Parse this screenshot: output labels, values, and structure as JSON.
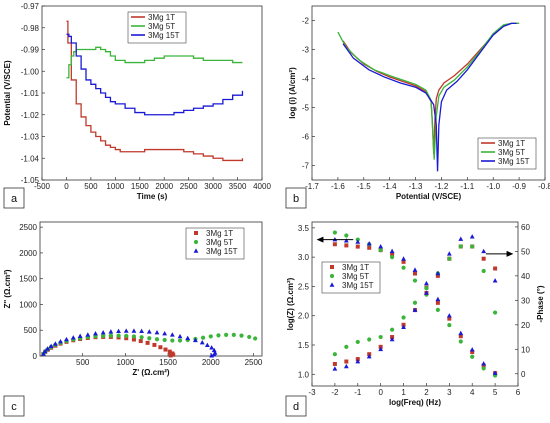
{
  "colors": {
    "Mg1T": "#c0392b",
    "Mg5T": "#3ab53a",
    "Mg15T": "#1a1ad6"
  },
  "chart_data": [
    {
      "panel_label": "a",
      "type": "line",
      "xlabel": "Time (s)",
      "ylabel": "Potential (V/SCE)",
      "xlim": [
        -500,
        4000
      ],
      "ylim": [
        -1.05,
        -0.97
      ],
      "xticks": [
        -500,
        0,
        500,
        1000,
        1500,
        2000,
        2500,
        3000,
        3500,
        4000
      ],
      "yticks": [
        -0.97,
        -0.98,
        -0.99,
        -1.0,
        -1.01,
        -1.02,
        -1.03,
        -1.04,
        -1.05
      ],
      "xtick_labels": [
        "-500",
        "0",
        "500",
        "1000",
        "1500",
        "2000",
        "2500",
        "3000",
        "3500",
        "4000"
      ],
      "ytick_labels": [
        "-0.97",
        "-0.98",
        "-0.99",
        "-1.00",
        "-1.01",
        "-1.02",
        "-1.03",
        "-1.04",
        "-1.05"
      ],
      "legend_position": "top-center",
      "series": [
        {
          "name": "3Mg 1T",
          "x": [
            0,
            30,
            100,
            200,
            300,
            400,
            500,
            600,
            700,
            800,
            900,
            1000,
            1100,
            1200,
            1400,
            1600,
            1800,
            2000,
            2200,
            2400,
            2600,
            2800,
            3000,
            3200,
            3400,
            3600
          ],
          "y": [
            -0.977,
            -0.987,
            -1.004,
            -1.015,
            -1.021,
            -1.025,
            -1.028,
            -1.03,
            -1.032,
            -1.034,
            -1.035,
            -1.036,
            -1.037,
            -1.037,
            -1.037,
            -1.036,
            -1.036,
            -1.036,
            -1.036,
            -1.037,
            -1.038,
            -1.039,
            -1.04,
            -1.041,
            -1.041,
            -1.04
          ]
        },
        {
          "name": "3Mg 5T",
          "x": [
            0,
            50,
            100,
            150,
            200,
            300,
            400,
            500,
            600,
            700,
            800,
            900,
            1000,
            1200,
            1400,
            1600,
            1800,
            2000,
            2200,
            2400,
            2600,
            2800,
            3000,
            3200,
            3400,
            3600
          ],
          "y": [
            -1.003,
            -0.997,
            -0.993,
            -0.991,
            -0.99,
            -0.99,
            -0.99,
            -0.99,
            -0.989,
            -0.99,
            -0.991,
            -0.993,
            -0.995,
            -0.996,
            -0.996,
            -0.995,
            -0.994,
            -0.993,
            -0.993,
            -0.993,
            -0.994,
            -0.995,
            -0.995,
            -0.995,
            -0.996,
            -0.996
          ]
        },
        {
          "name": "3Mg 15T",
          "x": [
            0,
            50,
            100,
            200,
            300,
            400,
            500,
            600,
            700,
            800,
            900,
            1000,
            1200,
            1400,
            1600,
            1800,
            2000,
            2200,
            2400,
            2600,
            2800,
            3000,
            3200,
            3400,
            3600
          ],
          "y": [
            -0.983,
            -0.984,
            -0.987,
            -0.993,
            -0.999,
            -1.004,
            -1.006,
            -1.008,
            -1.01,
            -1.012,
            -1.014,
            -1.015,
            -1.017,
            -1.019,
            -1.02,
            -1.02,
            -1.02,
            -1.019,
            -1.018,
            -1.017,
            -1.016,
            -1.015,
            -1.013,
            -1.011,
            -1.009
          ]
        }
      ]
    },
    {
      "panel_label": "b",
      "type": "line",
      "xlabel": "Potential (V/SCE)",
      "ylabel": "log (i) (A/cm²)",
      "xlim": [
        -1.7,
        -0.8
      ],
      "ylim": [
        -7.5,
        -1.5
      ],
      "xticks": [
        -1.7,
        -1.6,
        -1.5,
        -1.4,
        -1.3,
        -1.2,
        -1.1,
        -1.0,
        -0.9,
        -0.8
      ],
      "yticks": [
        -2,
        -3,
        -4,
        -5,
        -6,
        -7
      ],
      "xtick_labels": [
        "-1.7",
        "-1.6",
        "-1.5",
        "-1.4",
        "-1.3",
        "-1.2",
        "-1.1",
        "-1.0",
        "-0.9",
        "-0.8"
      ],
      "ytick_labels": [
        "-2",
        "-3",
        "-4",
        "-5",
        "-6",
        "-7"
      ],
      "legend_position": "bottom-right",
      "series": [
        {
          "name": "3Mg 1T",
          "x": [
            -1.58,
            -1.55,
            -1.5,
            -1.45,
            -1.4,
            -1.35,
            -1.3,
            -1.26,
            -1.24,
            -1.235,
            -1.23,
            -1.225,
            -1.22,
            -1.21,
            -1.19,
            -1.15,
            -1.1,
            -1.05,
            -1.0,
            -0.96,
            -0.93,
            -0.9
          ],
          "y": [
            -2.7,
            -3.1,
            -3.5,
            -3.75,
            -3.95,
            -4.1,
            -4.25,
            -4.45,
            -4.8,
            -5.5,
            -6.6,
            -5.4,
            -4.7,
            -4.4,
            -4.15,
            -3.9,
            -3.5,
            -3.0,
            -2.5,
            -2.2,
            -2.1,
            -2.1
          ]
        },
        {
          "name": "3Mg 5T",
          "x": [
            -1.6,
            -1.57,
            -1.52,
            -1.46,
            -1.4,
            -1.35,
            -1.3,
            -1.26,
            -1.24,
            -1.235,
            -1.228,
            -1.22,
            -1.21,
            -1.19,
            -1.15,
            -1.1,
            -1.05,
            -1.0,
            -0.96,
            -0.93,
            -0.9
          ],
          "y": [
            -2.4,
            -2.9,
            -3.35,
            -3.7,
            -3.9,
            -4.05,
            -4.2,
            -4.4,
            -4.75,
            -5.6,
            -6.8,
            -5.3,
            -4.6,
            -4.3,
            -4.05,
            -3.6,
            -3.05,
            -2.45,
            -2.15,
            -2.1,
            -2.1
          ]
        },
        {
          "name": "3Mg 15T",
          "x": [
            -1.58,
            -1.54,
            -1.48,
            -1.42,
            -1.36,
            -1.3,
            -1.26,
            -1.23,
            -1.22,
            -1.215,
            -1.21,
            -1.2,
            -1.18,
            -1.14,
            -1.1,
            -1.05,
            -1.0,
            -0.96,
            -0.93,
            -0.91
          ],
          "y": [
            -2.8,
            -3.3,
            -3.7,
            -3.95,
            -4.15,
            -4.3,
            -4.5,
            -4.9,
            -5.6,
            -7.2,
            -5.6,
            -4.8,
            -4.4,
            -4.1,
            -3.7,
            -3.1,
            -2.5,
            -2.2,
            -2.1,
            -2.1
          ]
        }
      ]
    },
    {
      "panel_label": "c",
      "type": "scatter",
      "xlabel": "Z' (Ω.cm²)",
      "ylabel": "Z'' (Ω.cm²)",
      "xlim": [
        0,
        2600
      ],
      "ylim": [
        0,
        2600
      ],
      "xticks": [
        500,
        1000,
        1500,
        2000,
        2500
      ],
      "yticks": [
        0,
        500,
        1000,
        1500,
        2000,
        2500
      ],
      "xtick_labels": [
        "500",
        "1000",
        "1500",
        "2000",
        "2500"
      ],
      "ytick_labels": [
        "0",
        "500",
        "1000",
        "1500",
        "2000",
        "2500"
      ],
      "legend_position": "top-right",
      "series": [
        {
          "name": "3Mg 1T",
          "marker": "square",
          "x": [
            40,
            60,
            90,
            130,
            180,
            240,
            310,
            390,
            470,
            560,
            650,
            740,
            830,
            920,
            1010,
            1100,
            1180,
            1260,
            1340,
            1410,
            1470,
            1520,
            1550,
            1560,
            1530
          ],
          "y": [
            40,
            80,
            120,
            160,
            200,
            240,
            275,
            305,
            330,
            350,
            365,
            370,
            370,
            360,
            345,
            320,
            290,
            255,
            215,
            170,
            125,
            85,
            50,
            25,
            10
          ]
        },
        {
          "name": "3Mg 5T",
          "marker": "circle",
          "x": [
            40,
            60,
            90,
            130,
            180,
            240,
            310,
            390,
            470,
            560,
            650,
            740,
            830,
            920,
            1010,
            1100,
            1190,
            1280,
            1370,
            1460,
            1550,
            1640,
            1730,
            1820,
            1910,
            2000,
            2090,
            2180,
            2270,
            2360,
            2450,
            2520
          ],
          "y": [
            40,
            85,
            130,
            175,
            215,
            255,
            290,
            320,
            345,
            365,
            380,
            390,
            395,
            395,
            390,
            380,
            365,
            345,
            325,
            310,
            300,
            300,
            310,
            330,
            355,
            380,
            400,
            410,
            410,
            395,
            370,
            340
          ]
        },
        {
          "name": "3Mg 15T",
          "marker": "triangle",
          "x": [
            40,
            60,
            90,
            130,
            180,
            240,
            310,
            390,
            470,
            560,
            650,
            740,
            830,
            920,
            1010,
            1100,
            1190,
            1280,
            1370,
            1460,
            1550,
            1640,
            1730,
            1820,
            1900,
            1960,
            2010,
            2040,
            2050,
            2040,
            2010
          ],
          "y": [
            40,
            90,
            140,
            190,
            235,
            280,
            320,
            355,
            385,
            410,
            435,
            455,
            470,
            480,
            485,
            485,
            480,
            470,
            455,
            435,
            410,
            380,
            345,
            305,
            260,
            210,
            160,
            110,
            60,
            25,
            5
          ]
        }
      ]
    },
    {
      "panel_label": "d",
      "type": "scatter",
      "xlabel": "log(Freq) (Hz)",
      "ylabel": "log(Z) (Ω.cm²)",
      "ylabel_right": "-Phase (°)",
      "xlim": [
        -3,
        6
      ],
      "ylim": [
        0.8,
        3.6
      ],
      "y2lim": [
        -5,
        62
      ],
      "xticks": [
        -3,
        -2,
        -1,
        0,
        1,
        2,
        3,
        4,
        5,
        6
      ],
      "yticks": [
        1.0,
        1.5,
        2.0,
        2.5,
        3.0,
        3.5
      ],
      "y2ticks": [
        0,
        10,
        20,
        30,
        40,
        50,
        60
      ],
      "xtick_labels": [
        "-3",
        "-2",
        "-1",
        "0",
        "1",
        "2",
        "3",
        "4",
        "5",
        "6"
      ],
      "ytick_labels": [
        "1.0",
        "1.5",
        "2.0",
        "2.5",
        "3.0",
        "3.5"
      ],
      "y2tick_labels": [
        "0",
        "10",
        "20",
        "30",
        "40",
        "50",
        "60"
      ],
      "legend_position": "center-left",
      "series_logZ": [
        {
          "name": "3Mg 1T",
          "marker": "square",
          "x": [
            -2,
            -1.5,
            -1,
            -0.5,
            0,
            0.5,
            1,
            1.5,
            2,
            2.5,
            3,
            3.5,
            4,
            4.5,
            5
          ],
          "y": [
            3.22,
            3.2,
            3.18,
            3.16,
            3.12,
            3.05,
            2.92,
            2.72,
            2.48,
            2.22,
            1.95,
            1.65,
            1.38,
            1.15,
            1.02
          ]
        },
        {
          "name": "3Mg 5T",
          "marker": "circle",
          "x": [
            -2,
            -1.5,
            -1,
            -0.5,
            0,
            0.5,
            1,
            1.5,
            2,
            2.5,
            3,
            3.5,
            4,
            4.5,
            5
          ],
          "y": [
            3.42,
            3.37,
            3.3,
            3.22,
            3.12,
            3.0,
            2.82,
            2.6,
            2.36,
            2.1,
            1.84,
            1.56,
            1.3,
            1.1,
            0.98
          ]
        },
        {
          "name": "3Mg 15T",
          "marker": "triangle",
          "x": [
            -2,
            -1.5,
            -1,
            -0.5,
            0,
            0.5,
            1,
            1.5,
            2,
            2.5,
            3,
            3.5,
            4,
            4.5,
            5
          ],
          "y": [
            3.3,
            3.28,
            3.26,
            3.23,
            3.18,
            3.1,
            2.97,
            2.78,
            2.55,
            2.28,
            2.0,
            1.7,
            1.42,
            1.18,
            1.02
          ]
        }
      ],
      "series_phase": [
        {
          "name": "3Mg 1T",
          "marker": "square",
          "x": [
            -2,
            -1.5,
            -1,
            -0.5,
            0,
            0.5,
            1,
            1.5,
            2,
            2.5,
            3,
            3.5,
            4,
            4.5,
            5
          ],
          "y": [
            4,
            5,
            6,
            8,
            11,
            15,
            20,
            26,
            33,
            40,
            47,
            52,
            52,
            47,
            43
          ]
        },
        {
          "name": "3Mg 5T",
          "marker": "circle",
          "x": [
            -2,
            -1.5,
            -1,
            -0.5,
            0,
            0.5,
            1,
            1.5,
            2,
            2.5,
            3,
            3.5,
            4,
            4.5,
            5
          ],
          "y": [
            8,
            11,
            13,
            14,
            15,
            18,
            23,
            29,
            35,
            41,
            47,
            52,
            52,
            42,
            25
          ]
        },
        {
          "name": "3Mg 15T",
          "marker": "triangle",
          "x": [
            -2,
            -1.5,
            -1,
            -0.5,
            0,
            0.5,
            1,
            1.5,
            2,
            2.5,
            3,
            3.5,
            4,
            4.5,
            5
          ],
          "y": [
            2,
            3,
            5,
            7,
            10,
            14,
            19,
            26,
            33,
            41,
            49,
            55,
            56,
            50,
            38
          ]
        }
      ]
    }
  ]
}
